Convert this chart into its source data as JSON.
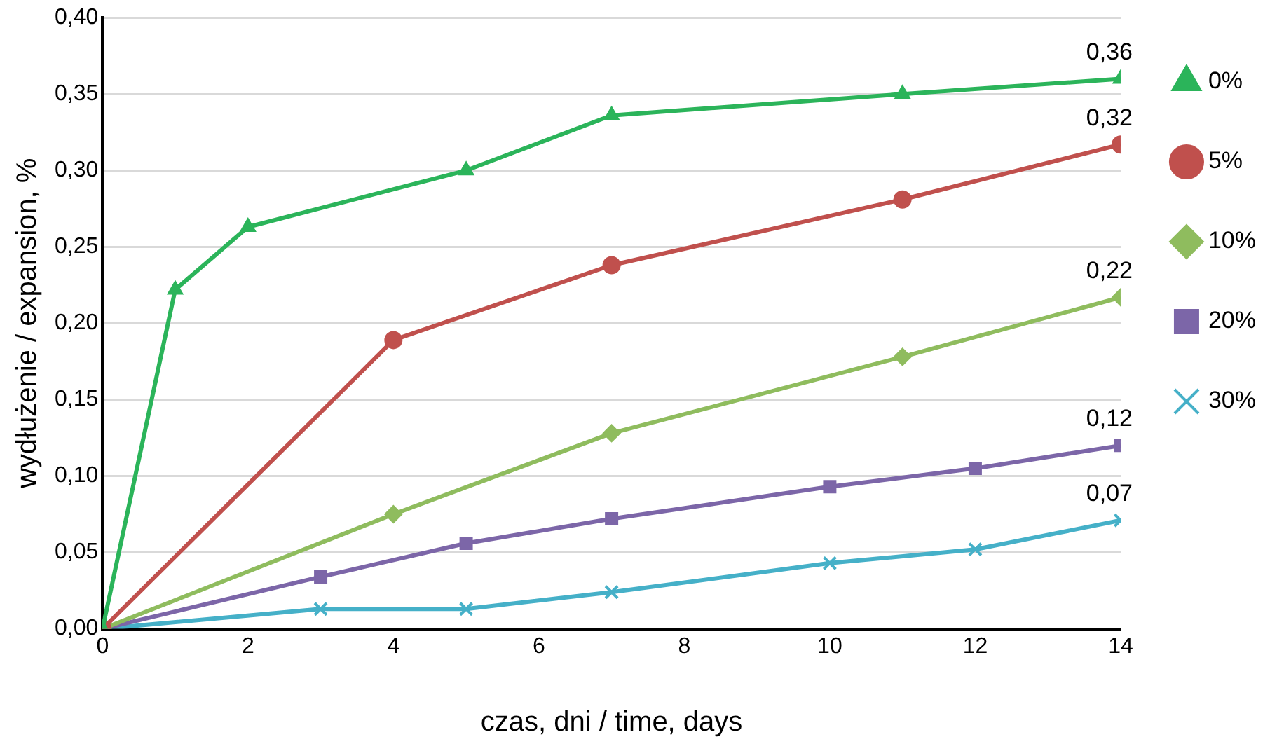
{
  "chart_data": {
    "type": "line",
    "xlabel": "czas, dni / time, days",
    "ylabel": "wydłużenie / expansion, %",
    "xlim": [
      0,
      14
    ],
    "xticks": [
      0,
      2,
      4,
      6,
      8,
      10,
      12,
      14
    ],
    "ylim": [
      0,
      0.4
    ],
    "yticks": [
      {
        "value": 0,
        "label": "0,00"
      },
      {
        "value": 0.05,
        "label": "0,05"
      },
      {
        "value": 0.1,
        "label": "0,10"
      },
      {
        "value": 0.15,
        "label": "0,15"
      },
      {
        "value": 0.2,
        "label": "0,20"
      },
      {
        "value": 0.25,
        "label": "0,25"
      },
      {
        "value": 0.3,
        "label": "0,30"
      },
      {
        "value": 0.35,
        "label": "0,35"
      },
      {
        "value": 0.4,
        "label": "0,40"
      }
    ],
    "grid": "y",
    "legend": "right",
    "line_style": "solid",
    "series": [
      {
        "name": "0%",
        "color": "#2bb45a",
        "marker": "triangle",
        "x": [
          0,
          1,
          2,
          5,
          7,
          11,
          14
        ],
        "values": [
          0,
          0.222,
          0.263,
          0.3,
          0.336,
          0.35,
          0.36
        ],
        "value_labels": [
          null,
          null,
          null,
          null,
          null,
          null,
          "0,36"
        ]
      },
      {
        "name": "5%",
        "color": "#c0504d",
        "marker": "circle",
        "x": [
          0,
          4,
          7,
          11,
          14
        ],
        "values": [
          0,
          0.189,
          0.238,
          0.281,
          0.317
        ],
        "value_labels": [
          null,
          null,
          null,
          null,
          "0,32"
        ]
      },
      {
        "name": "10%",
        "color": "#8fbc5e",
        "marker": "diamond",
        "x": [
          0,
          4,
          7,
          11,
          14
        ],
        "values": [
          0,
          0.075,
          0.128,
          0.178,
          0.217
        ],
        "value_labels": [
          null,
          null,
          null,
          null,
          "0,22"
        ]
      },
      {
        "name": "20%",
        "color": "#7c66a8",
        "marker": "square",
        "x": [
          0,
          3,
          5,
          7,
          10,
          12,
          14
        ],
        "values": [
          0,
          0.034,
          0.056,
          0.072,
          0.093,
          0.105,
          0.12
        ],
        "value_labels": [
          null,
          null,
          null,
          null,
          null,
          null,
          "0,12"
        ]
      },
      {
        "name": "30%",
        "color": "#45b0c8",
        "marker": "cross",
        "x": [
          0,
          3,
          5,
          7,
          10,
          12,
          14
        ],
        "values": [
          0,
          0.013,
          0.013,
          0.024,
          0.043,
          0.052,
          0.071
        ],
        "value_labels": [
          null,
          null,
          null,
          null,
          null,
          null,
          "0,07"
        ]
      }
    ]
  }
}
